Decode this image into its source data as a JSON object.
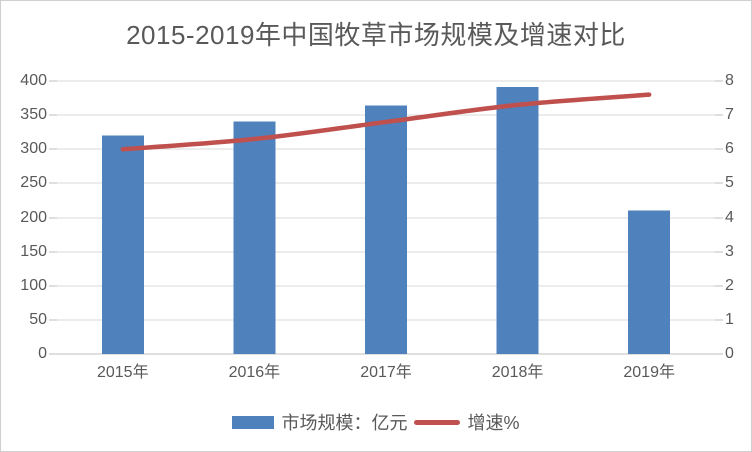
{
  "chart_data": {
    "type": "bar",
    "subtype": "combo-bar-line-dual-axis",
    "title": "2015-2019年中国牧草市场规模及增速对比",
    "categories": [
      "2015年",
      "2016年",
      "2017年",
      "2018年",
      "2019年"
    ],
    "series": [
      {
        "name": "市场规模：亿元",
        "type": "bar",
        "axis": "left",
        "color": "#4f81bd",
        "values": [
          320,
          341,
          364,
          391,
          210
        ]
      },
      {
        "name": "增速%",
        "type": "line",
        "axis": "right",
        "color": "#c0504d",
        "values": [
          6.0,
          6.3,
          6.8,
          7.3,
          7.6
        ]
      }
    ],
    "left_axis": {
      "min": 0,
      "max": 400,
      "step": 50,
      "tick_labels": [
        "0",
        "50",
        "100",
        "150",
        "200",
        "250",
        "300",
        "350",
        "400"
      ]
    },
    "right_axis": {
      "min": 0,
      "max": 8,
      "step": 1,
      "tick_labels": [
        "0",
        "1",
        "2",
        "3",
        "4",
        "5",
        "6",
        "7",
        "8"
      ]
    },
    "grid": true,
    "legend_position": "bottom"
  },
  "colors": {
    "bar": "#4f81bd",
    "line": "#c0504d",
    "text": "#595959",
    "gridline": "#d9d9d9",
    "axis_line": "#bfbfbf",
    "background": "#ffffff",
    "border": "#cfcfcf"
  }
}
